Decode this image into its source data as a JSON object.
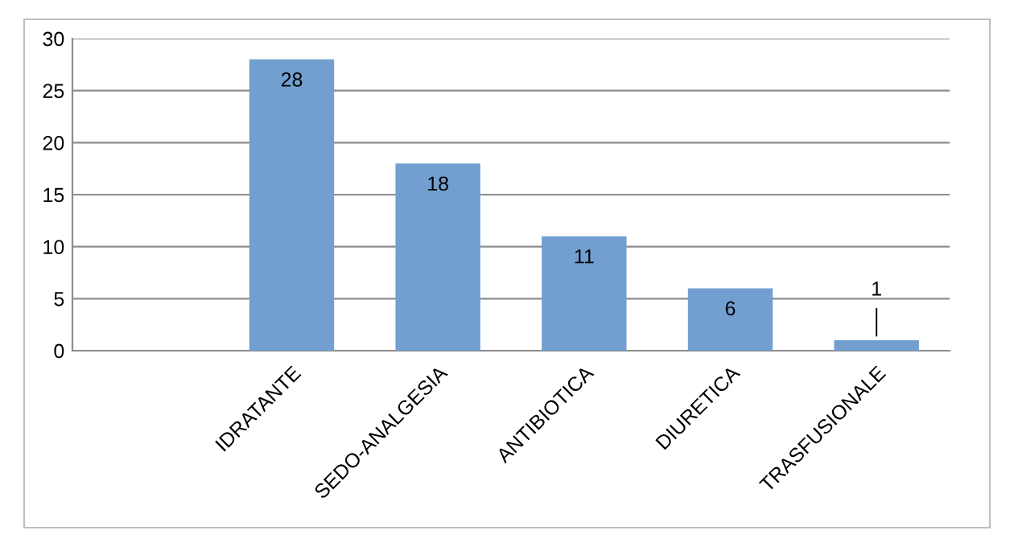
{
  "chart_data": {
    "type": "bar",
    "categories": [
      null,
      "IDRATANTE",
      "SEDO-ANALGESIA",
      "ANTIBIOTICA",
      "DIURETICA",
      "TRASFUSIONALE"
    ],
    "values": [
      null,
      28,
      18,
      11,
      6,
      1
    ],
    "color": "#729fcf",
    "ylim": [
      0,
      30
    ],
    "yticks": [
      0,
      5,
      10,
      15,
      20,
      25,
      30
    ],
    "grid": "y",
    "data_labels": true
  }
}
